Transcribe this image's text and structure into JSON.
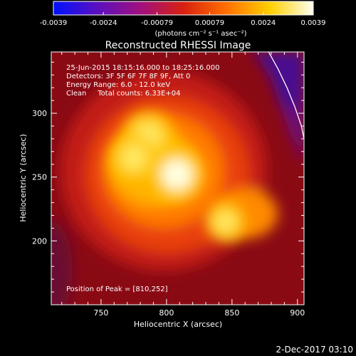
{
  "colorbar": {
    "tick_labels": [
      "-0.0039",
      "-0.0024",
      "-0.00079",
      "0.00079",
      "0.0024",
      "0.0039"
    ],
    "tick_values": [
      -0.0039,
      -0.0024,
      -0.00079,
      0.00079,
      0.0024,
      0.0039
    ],
    "range": [
      -0.0039,
      0.0039
    ],
    "unit_label": "(photons cm⁻² s⁻¹ asec⁻²)",
    "gradient": [
      "#0010ff",
      "#5a10c0",
      "#a01080",
      "#d82010",
      "#ff7000",
      "#ffd000",
      "#fffff0"
    ]
  },
  "plot": {
    "title": "Reconstructed RHESSI Image",
    "annotations": [
      "25-Jun-2015 18:15:16.000 to 18:25:16.000",
      "Detectors: 3F 5F 6F 7F 8F 9F, Att 0",
      "Energy Range: 6.0 - 12.0 keV",
      "Clean     Total counts: 6.33E+04"
    ],
    "peak_label": "Position of Peak = [810,252]"
  },
  "timestamp": "2-Dec-2017 03:10",
  "chart_data": {
    "type": "heatmap",
    "title": "Reconstructed RHESSI Image",
    "xlabel": "Heliocentric X (arcsec)",
    "ylabel": "Heliocentric Y (arcsec)",
    "xlim": [
      712,
      905
    ],
    "ylim": [
      150,
      348
    ],
    "x_ticks": [
      750,
      800,
      850,
      900
    ],
    "y_ticks": [
      200,
      250,
      300
    ],
    "peak": [
      810,
      252
    ],
    "limb_curve": {
      "x": [
        878,
        885,
        892,
        898,
        903,
        905
      ],
      "y": [
        348,
        335,
        320,
        305,
        290,
        280
      ]
    },
    "sources": [
      {
        "x": 808,
        "y": 252,
        "relative_intensity": 1.0
      },
      {
        "x": 786,
        "y": 282,
        "relative_intensity": 0.85
      },
      {
        "x": 775,
        "y": 265,
        "relative_intensity": 0.75
      },
      {
        "x": 845,
        "y": 215,
        "relative_intensity": 0.55
      }
    ]
  }
}
